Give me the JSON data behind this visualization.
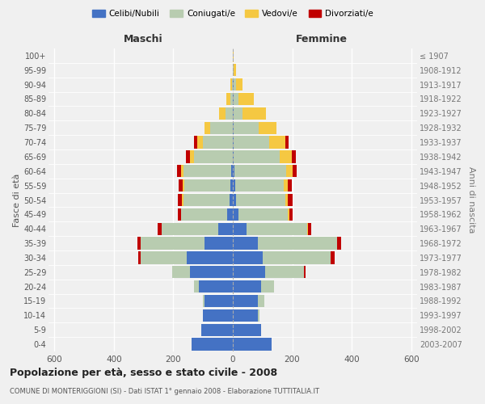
{
  "age_groups": [
    "0-4",
    "5-9",
    "10-14",
    "15-19",
    "20-24",
    "25-29",
    "30-34",
    "35-39",
    "40-44",
    "45-49",
    "50-54",
    "55-59",
    "60-64",
    "65-69",
    "70-74",
    "75-79",
    "80-84",
    "85-89",
    "90-94",
    "95-99",
    "100+"
  ],
  "birth_years": [
    "2003-2007",
    "1998-2002",
    "1993-1997",
    "1988-1992",
    "1983-1987",
    "1978-1982",
    "1973-1977",
    "1968-1972",
    "1963-1967",
    "1958-1962",
    "1953-1957",
    "1948-1952",
    "1943-1947",
    "1938-1942",
    "1933-1937",
    "1928-1932",
    "1923-1927",
    "1918-1922",
    "1913-1917",
    "1908-1912",
    "≤ 1907"
  ],
  "males": {
    "celibi": [
      140,
      105,
      100,
      95,
      115,
      145,
      155,
      95,
      50,
      18,
      12,
      8,
      5,
      0,
      0,
      0,
      0,
      0,
      0,
      0,
      0
    ],
    "coniugati": [
      0,
      0,
      0,
      5,
      15,
      60,
      155,
      215,
      190,
      155,
      155,
      155,
      160,
      130,
      100,
      75,
      25,
      8,
      2,
      0,
      0
    ],
    "vedovi": [
      0,
      0,
      0,
      0,
      0,
      0,
      0,
      0,
      0,
      2,
      5,
      5,
      8,
      15,
      20,
      20,
      20,
      15,
      5,
      0,
      0
    ],
    "divorziati": [
      0,
      0,
      0,
      0,
      0,
      0,
      8,
      12,
      12,
      10,
      12,
      15,
      15,
      12,
      10,
      0,
      0,
      0,
      0,
      0,
      0
    ]
  },
  "females": {
    "nubili": [
      130,
      95,
      85,
      85,
      95,
      110,
      100,
      85,
      45,
      20,
      12,
      7,
      5,
      4,
      3,
      2,
      2,
      2,
      2,
      0,
      0
    ],
    "coniugate": [
      0,
      0,
      5,
      20,
      45,
      130,
      230,
      265,
      205,
      165,
      165,
      165,
      175,
      155,
      120,
      85,
      30,
      18,
      8,
      2,
      0
    ],
    "vedove": [
      0,
      0,
      0,
      0,
      0,
      0,
      0,
      0,
      2,
      5,
      8,
      12,
      20,
      40,
      55,
      60,
      80,
      50,
      22,
      8,
      2
    ],
    "divorziate": [
      0,
      0,
      0,
      0,
      0,
      5,
      12,
      15,
      12,
      12,
      15,
      15,
      15,
      12,
      10,
      0,
      0,
      0,
      0,
      0,
      0
    ]
  },
  "colors": {
    "celibi": "#4472C4",
    "coniugati": "#B8CCB0",
    "vedovi": "#F5C842",
    "divorziati": "#C00000"
  },
  "xlim": 620,
  "title": "Popolazione per età, sesso e stato civile - 2008",
  "subtitle": "COMUNE DI MONTERIGGIONI (SI) - Dati ISTAT 1° gennaio 2008 - Elaborazione TUTTITALIA.IT",
  "ylabel_left": "Fasce di età",
  "ylabel_right": "Anni di nascita",
  "xlabel_maschi": "Maschi",
  "xlabel_femmine": "Femmine",
  "bg_color": "#f0f0f0",
  "bar_height": 0.85
}
